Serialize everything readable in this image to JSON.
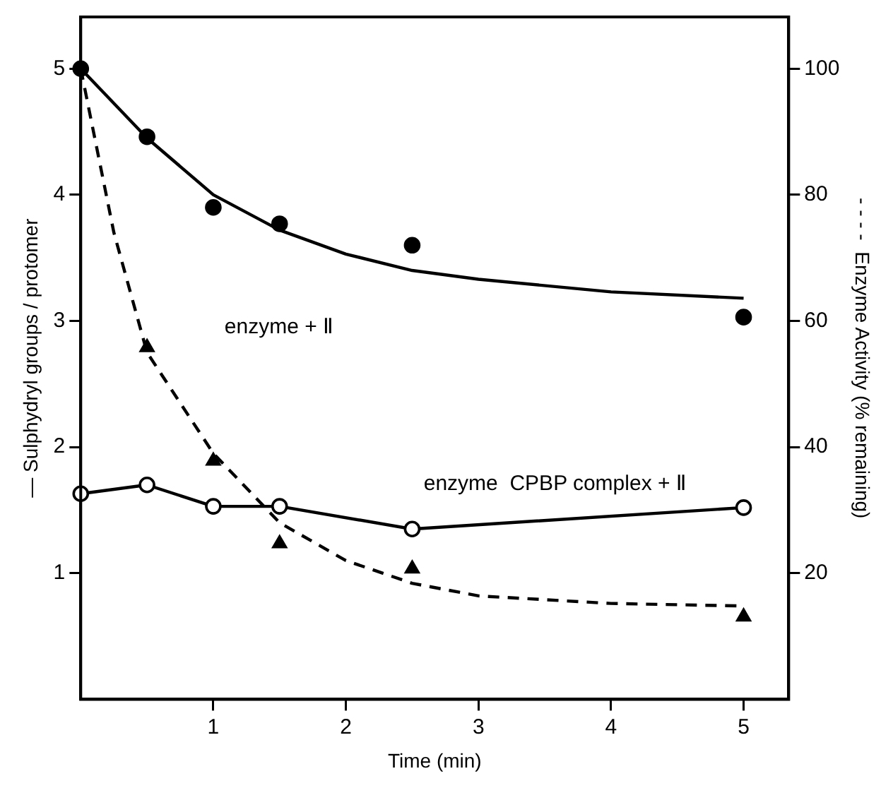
{
  "chart_data": {
    "type": "line",
    "xlabel": "Time (min)",
    "ylabel": "— Sulphydryl groups / protomer",
    "y2label": "- - - -  Enzyme Activity (% remaining)",
    "xlim": [
      0,
      5.34
    ],
    "xticks": [
      1,
      2,
      3,
      4,
      5
    ],
    "ylim": [
      0,
      5.41
    ],
    "yticks": [
      1,
      2,
      3,
      4,
      5
    ],
    "y2lim": [
      0,
      108.2
    ],
    "y2ticks": [
      20,
      40,
      60,
      80,
      100
    ],
    "grid": false,
    "legend": false,
    "series": [
      {
        "type": "scatter",
        "color": "#000000",
        "marker": "circle",
        "x": [
          0,
          0.5,
          1,
          1.5,
          2.5,
          5
        ],
        "values": [
          5,
          4.46,
          3.9,
          3.77,
          3.6,
          3.03
        ]
      },
      {
        "type": "line",
        "color": "#000000",
        "marker": "none",
        "line_style": "solid",
        "x": [
          0,
          0.5,
          1,
          1.5,
          2,
          2.5,
          3,
          4,
          5
        ],
        "values": [
          5,
          4.45,
          4.0,
          3.72,
          3.53,
          3.4,
          3.33,
          3.23,
          3.18
        ]
      },
      {
        "type": "line",
        "color": "#000000",
        "marker": "circle",
        "line_style": "solid",
        "x": [
          0,
          0.5,
          1,
          1.5,
          2.5,
          5
        ],
        "values": [
          1.63,
          1.7,
          1.53,
          1.53,
          1.35,
          1.52
        ]
      },
      {
        "type": "scatter",
        "color": "#000000",
        "marker": "triangle",
        "axis": "y2",
        "x": [
          0.5,
          1,
          1.5,
          2.5,
          5
        ],
        "values": [
          55.8,
          37.8,
          24.7,
          20.7,
          13.1
        ]
      },
      {
        "type": "line",
        "color": "#000000",
        "marker": "none",
        "line_style": "dashed",
        "axis": "y2",
        "x": [
          0,
          0.25,
          0.5,
          1,
          1.5,
          2,
          2.5,
          3,
          4,
          5
        ],
        "values": [
          100,
          74,
          55,
          39,
          28,
          22,
          18.4,
          16.4,
          15.2,
          14.8
        ]
      }
    ],
    "annotations": [
      "enzyme + Ⅱ",
      "enzyme  CPBP complex + Ⅱ"
    ]
  }
}
